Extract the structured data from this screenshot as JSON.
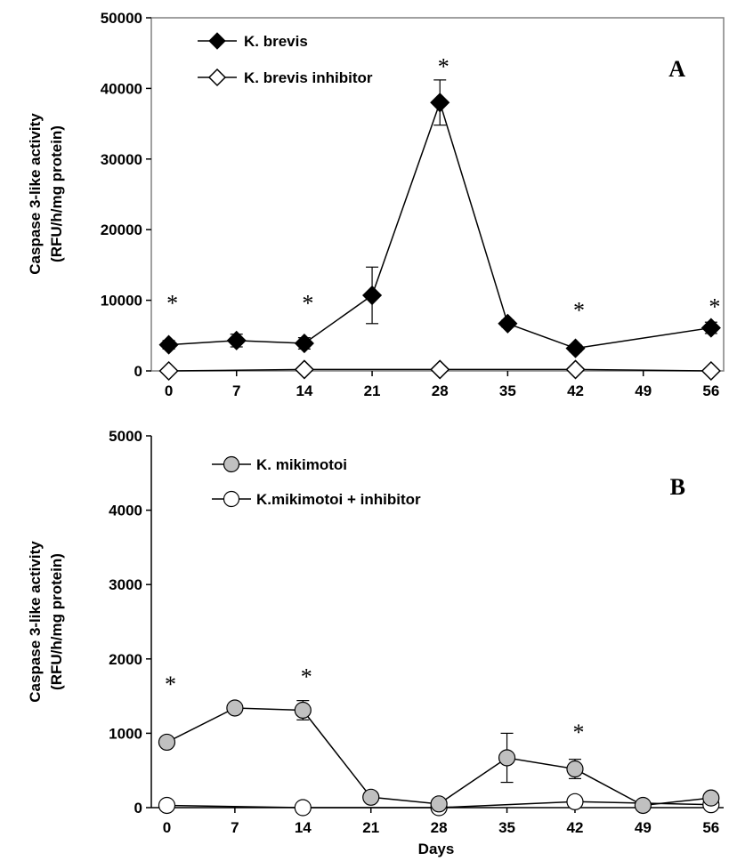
{
  "chart_data": [
    {
      "type": "line",
      "panel_label": "A",
      "xlabel": "",
      "ylabel": "Caspase 3-like activity",
      "ylabel2": "(RFU/h/mg protein)",
      "x": [
        0,
        7,
        14,
        21,
        28,
        35,
        42,
        49,
        56
      ],
      "x_tick_labels": [
        "0",
        "7",
        "14",
        "21",
        "28",
        "35",
        "42",
        "49",
        "56"
      ],
      "ylim": [
        0,
        50000
      ],
      "y_ticks": [
        0,
        10000,
        20000,
        30000,
        40000,
        50000
      ],
      "y_tick_labels": [
        "0",
        "10000",
        "20000",
        "30000",
        "40000",
        "50000"
      ],
      "legend_position": "top-left",
      "series": [
        {
          "name": "K. brevis",
          "marker": "diamond-filled",
          "color": "#000000",
          "x": [
            0,
            7,
            14,
            21,
            28,
            35,
            42,
            56
          ],
          "values": [
            3700,
            4300,
            3900,
            10700,
            38000,
            6700,
            3200,
            6100
          ],
          "errors": [
            600,
            900,
            800,
            4000,
            3200,
            500,
            500,
            800
          ]
        },
        {
          "name": "K. brevis inhibitor",
          "marker": "diamond-open",
          "color": "#000000",
          "x": [
            0,
            14,
            28,
            42,
            56
          ],
          "values": [
            0,
            200,
            200,
            200,
            0
          ],
          "errors": [
            0,
            0,
            0,
            0,
            0
          ]
        }
      ],
      "significance_marks": [
        {
          "x": 0,
          "text": "*",
          "y": 10000
        },
        {
          "x": 14,
          "text": "*",
          "y": 10000
        },
        {
          "x": 28,
          "text": "*",
          "y": 43500
        },
        {
          "x": 42,
          "text": "*",
          "y": 9000
        },
        {
          "x": 56,
          "text": "*",
          "y": 9500
        }
      ]
    },
    {
      "type": "line",
      "panel_label": "B",
      "xlabel": "Days",
      "ylabel": "Caspase 3-like activity",
      "ylabel2": "(RFU/h/mg protein)",
      "x": [
        0,
        7,
        14,
        21,
        28,
        35,
        42,
        49,
        56
      ],
      "x_tick_labels": [
        "0",
        "7",
        "14",
        "21",
        "28",
        "35",
        "42",
        "49",
        "56"
      ],
      "ylim": [
        0,
        5000
      ],
      "y_ticks": [
        0,
        1000,
        2000,
        3000,
        4000,
        5000
      ],
      "y_tick_labels": [
        "0",
        "1000",
        "2000",
        "3000",
        "4000",
        "5000"
      ],
      "legend_position": "top-left",
      "series": [
        {
          "name": "K. mikimotoi",
          "marker": "circle-gray",
          "color": "#c0c0c0",
          "x": [
            0,
            7,
            14,
            21,
            28,
            35,
            42,
            49,
            56
          ],
          "values": [
            880,
            1340,
            1310,
            140,
            50,
            670,
            520,
            30,
            130
          ],
          "errors": [
            0,
            60,
            130,
            0,
            0,
            330,
            130,
            0,
            0
          ]
        },
        {
          "name": "K.mikimotoi + inhibitor",
          "marker": "circle-open",
          "color": "#ffffff",
          "x": [
            0,
            14,
            28,
            42,
            56
          ],
          "values": [
            30,
            0,
            0,
            80,
            40
          ],
          "errors": [
            0,
            0,
            0,
            0,
            0
          ]
        }
      ],
      "significance_marks": [
        {
          "x": 0,
          "text": "*",
          "y": 1700
        },
        {
          "x": 14,
          "text": "*",
          "y": 1800
        },
        {
          "x": 42,
          "text": "*",
          "y": 1050
        }
      ]
    }
  ]
}
